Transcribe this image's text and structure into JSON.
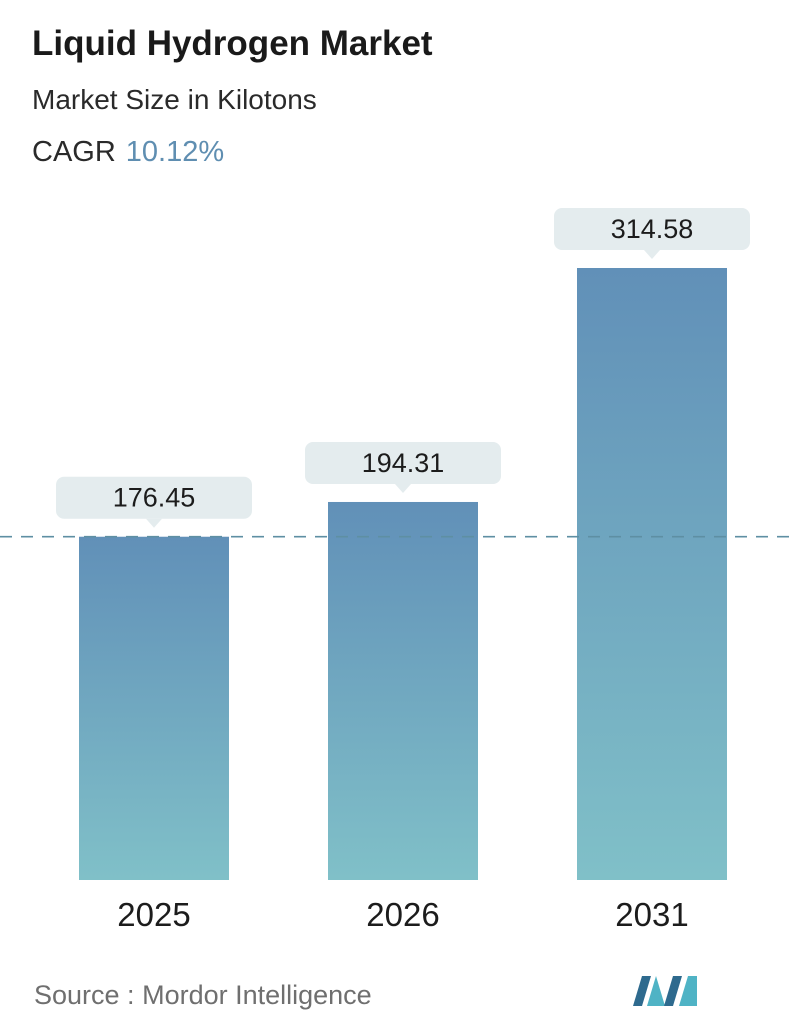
{
  "header": {
    "title": "Liquid Hydrogen Market",
    "subtitle": "Market Size in Kilotons",
    "cagr_label": "CAGR",
    "cagr_value": "10.12%"
  },
  "footer": {
    "source_label": "Source :",
    "source_name": "Mordor Intelligence"
  },
  "colors": {
    "bar_top": "#6190b8",
    "bar_bottom": "#80c0c8",
    "label_bg": "#e4ecee",
    "reference_line": "#5e8fa3",
    "cagr_accent": "#5f8eb1",
    "logo_dark": "#2e6a8e",
    "logo_light": "#4fb3c5"
  },
  "chart_data": {
    "type": "bar",
    "categories": [
      "2025",
      "2026",
      "2031"
    ],
    "values": [
      176.45,
      194.31,
      314.58
    ],
    "value_labels": [
      "176.45",
      "194.31",
      "314.58"
    ],
    "title": "Liquid Hydrogen Market",
    "subtitle": "Market Size in Kilotons",
    "xlabel": "",
    "ylabel": "",
    "ylim": [
      0,
      314.58
    ],
    "grid": false,
    "reference_line": "dashed line at first bar value",
    "legend": "none"
  },
  "logo": {
    "name": "mordor-intelligence-logo-icon"
  }
}
